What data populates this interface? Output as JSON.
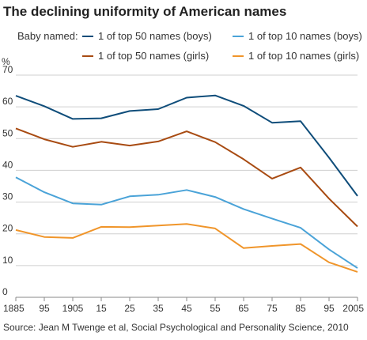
{
  "title": "The declining uniformity of American names",
  "source": "Source: Jean M Twenge et al, Social Psychological and Personality Science, 2010",
  "chart_data": {
    "type": "line",
    "title": "The declining uniformity of American names",
    "ylabel": "%",
    "xlabel": "",
    "legend_prefix": "Baby named:",
    "legend_placement": "top",
    "grid": true,
    "ylim": [
      0,
      70
    ],
    "xlim": [
      1885,
      2005
    ],
    "yticks": [
      0,
      10,
      20,
      30,
      40,
      50,
      60,
      70
    ],
    "ytick_labels": [
      "0",
      "10",
      "20",
      "30",
      "40",
      "50",
      "60",
      "70"
    ],
    "xticks": [
      1885,
      1895,
      1905,
      1915,
      1925,
      1935,
      1945,
      1955,
      1965,
      1975,
      1985,
      1995,
      2005
    ],
    "xtick_labels": [
      "1885",
      "95",
      "1905",
      "15",
      "25",
      "35",
      "45",
      "55",
      "65",
      "75",
      "85",
      "95",
      "2005"
    ],
    "x": [
      1885,
      1895,
      1905,
      1915,
      1925,
      1935,
      1945,
      1955,
      1965,
      1975,
      1985,
      1995,
      2005
    ],
    "series": [
      {
        "name": "1 of top 50 names (boys)",
        "color": "#0f4d7a",
        "values": [
          63.5,
          60.2,
          56.2,
          56.4,
          58.7,
          59.3,
          62.9,
          63.6,
          60.3,
          55,
          55.5,
          44,
          31.9
        ]
      },
      {
        "name": "1 of top 10 names (boys)",
        "color": "#4aa3d8",
        "values": [
          37.8,
          33.1,
          29.6,
          29.2,
          31.8,
          32.3,
          33.8,
          31.6,
          27.8,
          24.8,
          21.9,
          15.1,
          9.2
        ]
      },
      {
        "name": "1 of top 50 names (girls)",
        "color": "#a84b12",
        "values": [
          53.2,
          49.8,
          47.4,
          49,
          47.8,
          49.1,
          52.3,
          48.9,
          43.5,
          37.4,
          40.9,
          31.1,
          22.3
        ]
      },
      {
        "name": "1 of top 10 names (girls)",
        "color": "#f0952a",
        "values": [
          21.2,
          19,
          18.7,
          22.2,
          22.1,
          22.6,
          23.1,
          21.7,
          15.5,
          16.2,
          16.8,
          11,
          8
        ]
      }
    ]
  }
}
